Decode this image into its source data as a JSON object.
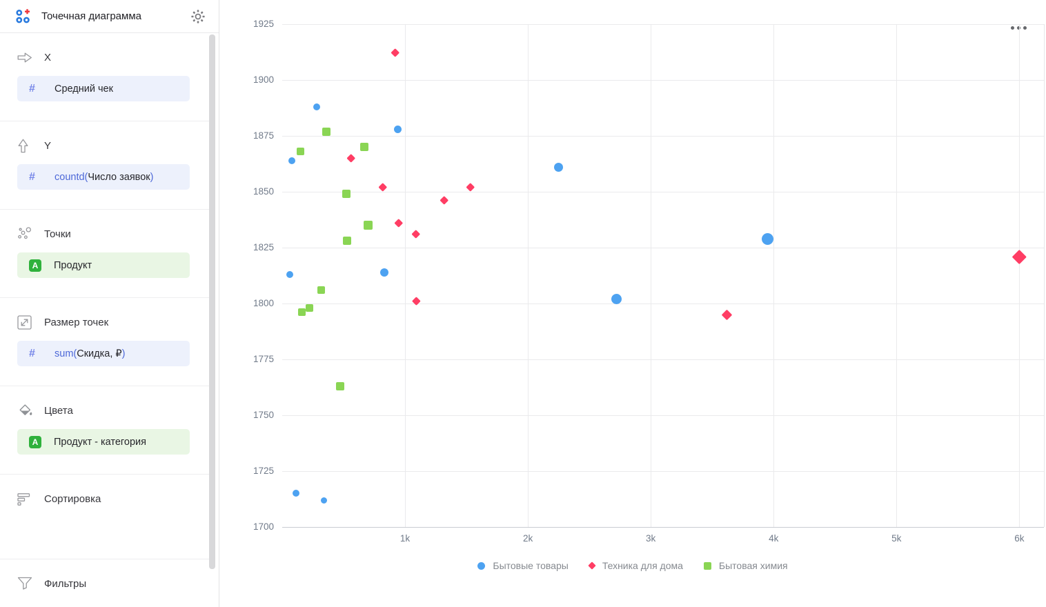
{
  "app": {
    "title": "Точечная диаграмма"
  },
  "sidebar": {
    "sections": [
      {
        "label": "X",
        "icon": "arrow-right-icon",
        "field": {
          "kind": "measure",
          "prefix": "",
          "name": "Средний чек",
          "suffix": ""
        }
      },
      {
        "label": "Y",
        "icon": "arrow-up-icon",
        "field": {
          "kind": "measure",
          "prefix": "countd(",
          "name": "Число заявок",
          "suffix": ")"
        }
      },
      {
        "label": "Точки",
        "icon": "scatter-dots-icon",
        "field": {
          "kind": "dimension",
          "badge": "A",
          "prefix": "",
          "name": "Продукт",
          "suffix": ""
        }
      },
      {
        "label": "Размер точек",
        "icon": "resize-icon",
        "field": {
          "kind": "measure",
          "prefix": "sum(",
          "name": "Скидка, ₽",
          "suffix": ")"
        }
      },
      {
        "label": "Цвета",
        "icon": "paint-bucket-icon",
        "field": {
          "kind": "dimension",
          "badge": "A",
          "prefix": "",
          "name": "Продукт - категория",
          "suffix": ""
        }
      },
      {
        "label": "Сортировка",
        "icon": "sort-icon"
      },
      {
        "label": "Фильтры",
        "icon": "filter-icon"
      }
    ]
  },
  "chart_data": {
    "type": "scatter",
    "x_field": "Средний чек",
    "y_field": "countd(Число заявок)",
    "size_field": "sum(Скидка, ₽)",
    "x_axis": {
      "min": 0,
      "max": 6200,
      "ticks": [
        {
          "value": 1000,
          "label": "1k"
        },
        {
          "value": 2000,
          "label": "2k"
        },
        {
          "value": 3000,
          "label": "3k"
        },
        {
          "value": 4000,
          "label": "4k"
        },
        {
          "value": 5000,
          "label": "5k"
        },
        {
          "value": 6000,
          "label": "6k"
        }
      ]
    },
    "y_axis": {
      "min": 1700,
      "max": 1925,
      "tick_step": 25,
      "ticks": [
        1700,
        1725,
        1750,
        1775,
        1800,
        1825,
        1850,
        1875,
        1900,
        1925
      ]
    },
    "grid": true,
    "legend_position": "bottom",
    "series": [
      {
        "name": "Бытовые товары",
        "color": "#4DA2F1",
        "marker": "circle",
        "points": [
          {
            "x": 280,
            "y": 1888,
            "s": 10
          },
          {
            "x": 940,
            "y": 1878,
            "s": 11
          },
          {
            "x": 80,
            "y": 1864,
            "s": 10
          },
          {
            "x": 2250,
            "y": 1861,
            "s": 13
          },
          {
            "x": 830,
            "y": 1814,
            "s": 12
          },
          {
            "x": 60,
            "y": 1813,
            "s": 10
          },
          {
            "x": 3950,
            "y": 1829,
            "s": 17
          },
          {
            "x": 2720,
            "y": 1802,
            "s": 15
          },
          {
            "x": 110,
            "y": 1715,
            "s": 10
          },
          {
            "x": 340,
            "y": 1712,
            "s": 9
          }
        ]
      },
      {
        "name": "Техника для дома",
        "color": "#FF3D64",
        "marker": "diamond",
        "points": [
          {
            "x": 920,
            "y": 1912,
            "s": 13
          },
          {
            "x": 560,
            "y": 1865,
            "s": 13
          },
          {
            "x": 820,
            "y": 1852,
            "s": 13
          },
          {
            "x": 1530,
            "y": 1852,
            "s": 13
          },
          {
            "x": 1320,
            "y": 1846,
            "s": 13
          },
          {
            "x": 950,
            "y": 1836,
            "s": 13
          },
          {
            "x": 1090,
            "y": 1831,
            "s": 13
          },
          {
            "x": 1090,
            "y": 1801,
            "s": 12
          },
          {
            "x": 3620,
            "y": 1795,
            "s": 15
          },
          {
            "x": 6000,
            "y": 1821,
            "s": 20
          }
        ]
      },
      {
        "name": "Бытовая химия",
        "color": "#8AD554",
        "marker": "square",
        "points": [
          {
            "x": 360,
            "y": 1877,
            "s": 12
          },
          {
            "x": 670,
            "y": 1870,
            "s": 12
          },
          {
            "x": 150,
            "y": 1868,
            "s": 11
          },
          {
            "x": 520,
            "y": 1849,
            "s": 12
          },
          {
            "x": 700,
            "y": 1835,
            "s": 13
          },
          {
            "x": 530,
            "y": 1828,
            "s": 12
          },
          {
            "x": 320,
            "y": 1806,
            "s": 11
          },
          {
            "x": 220,
            "y": 1798,
            "s": 11
          },
          {
            "x": 160,
            "y": 1796,
            "s": 11
          },
          {
            "x": 470,
            "y": 1763,
            "s": 12
          }
        ]
      }
    ]
  }
}
